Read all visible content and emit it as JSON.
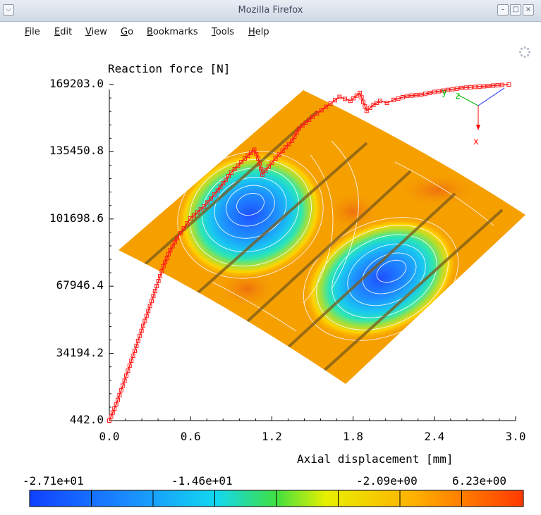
{
  "window": {
    "title": "Mozilla Firefox",
    "menu_icon": "chevron-down-icon",
    "buttons": [
      "minimize-icon",
      "maximize-icon",
      "close-icon"
    ]
  },
  "menubar": {
    "items": [
      {
        "label": "File",
        "key": "F"
      },
      {
        "label": "Edit",
        "key": "E"
      },
      {
        "label": "View",
        "key": "V"
      },
      {
        "label": "Go",
        "key": "G"
      },
      {
        "label": "Bookmarks",
        "key": "B"
      },
      {
        "label": "Tools",
        "key": "T"
      },
      {
        "label": "Help",
        "key": "H"
      }
    ],
    "throbber_icon": "loading-icon"
  },
  "colors": {
    "series": "#ff1a1a",
    "surface_base": "#f6a000",
    "axis": "#000000"
  },
  "chart_data": {
    "type": "line",
    "title": "Reaction force [N]",
    "xlabel": "Axial displacement [mm]",
    "ylabel": "",
    "xlim": [
      0.0,
      3.0
    ],
    "ylim": [
      442.0,
      169203.0
    ],
    "x_ticks": [
      "0.0",
      "0.6",
      "1.2",
      "1.8",
      "2.4",
      "3.0"
    ],
    "y_ticks": [
      "442.0",
      "34194.2",
      "67946.4",
      "101698.6",
      "135450.8",
      "169203.0"
    ],
    "grid": false,
    "series": [
      {
        "x": [
          0.0,
          0.05,
          0.1,
          0.15,
          0.2,
          0.25,
          0.3,
          0.35,
          0.4,
          0.45,
          0.5,
          0.55,
          0.6,
          0.7,
          0.8,
          0.9,
          1.0,
          1.07,
          1.1,
          1.13,
          1.2,
          1.28,
          1.35,
          1.4,
          1.5,
          1.6,
          1.7,
          1.78,
          1.85,
          1.9,
          1.95,
          2.0,
          2.05,
          2.1,
          2.2,
          2.3,
          2.4,
          2.5,
          2.6,
          2.7,
          2.8,
          2.9,
          2.95
        ],
        "y": [
          442,
          8500,
          18000,
          28000,
          38000,
          48000,
          58000,
          68000,
          78000,
          86000,
          92000,
          97000,
          102000,
          108000,
          116000,
          125000,
          132000,
          136500,
          132000,
          124000,
          130000,
          136000,
          141000,
          147000,
          153000,
          158000,
          163000,
          161000,
          165000,
          156000,
          159000,
          161000,
          160000,
          161500,
          163500,
          164000,
          165500,
          166500,
          167500,
          168000,
          168500,
          169000,
          169203
        ]
      }
    ],
    "colorbar": {
      "labels": [
        "-2.71e+01",
        "-1.46e+01",
        "-2.09e+00",
        "6.23e+00"
      ],
      "min": -27.1,
      "max": 6.23
    },
    "axes_triad": {
      "labels": [
        "y",
        "z",
        "x"
      ]
    }
  }
}
